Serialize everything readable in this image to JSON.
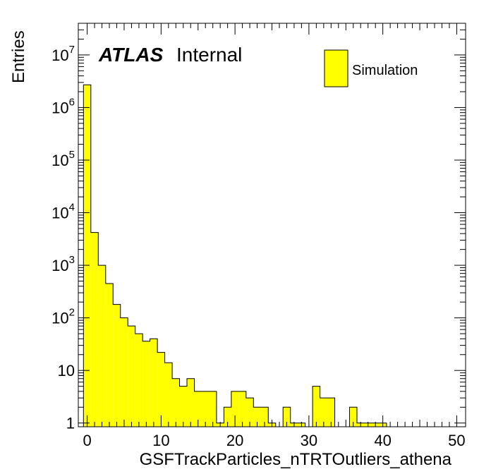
{
  "chart_data": {
    "type": "bar",
    "style": "histogram-step",
    "xlabel": "GSFTrackParticles_nTRTOutliers_athena",
    "ylabel": "Entries",
    "yscale": "log",
    "xlim": [
      -1.2,
      51.2
    ],
    "ylim": [
      0.85,
      40000000
    ],
    "x_ticks": [
      0,
      10,
      20,
      30,
      40,
      50
    ],
    "x_tick_labels": [
      "0",
      "10",
      "20",
      "30",
      "40",
      "50"
    ],
    "y_ticks": [
      {
        "value": 1,
        "base": "1",
        "exp": ""
      },
      {
        "value": 10,
        "base": "10",
        "exp": ""
      },
      {
        "value": 100,
        "base": "10",
        "exp": "2"
      },
      {
        "value": 1000,
        "base": "10",
        "exp": "3"
      },
      {
        "value": 10000,
        "base": "10",
        "exp": "4"
      },
      {
        "value": 100000,
        "base": "10",
        "exp": "5"
      },
      {
        "value": 1000000,
        "base": "10",
        "exp": "6"
      },
      {
        "value": 10000000,
        "base": "10",
        "exp": "7"
      }
    ],
    "bin_width": 1,
    "bin_start": -0.5,
    "series": [
      {
        "name": "Simulation",
        "color": "#ffff00",
        "values": [
          2700000,
          4200,
          1000,
          450,
          180,
          100,
          70,
          50,
          36,
          40,
          22,
          14,
          7,
          5,
          7,
          4,
          4,
          4,
          1,
          2,
          4,
          4,
          3,
          2,
          2,
          1,
          0,
          2,
          1,
          1,
          0,
          5,
          3,
          3,
          0,
          0,
          2,
          1,
          1,
          1,
          1,
          0,
          0,
          0,
          0,
          0,
          0,
          0,
          0,
          0,
          0
        ]
      }
    ],
    "legend": {
      "position": "top-right",
      "label": "Simulation"
    },
    "annotations": {
      "atlas": "ATLAS",
      "status": "Internal"
    }
  }
}
